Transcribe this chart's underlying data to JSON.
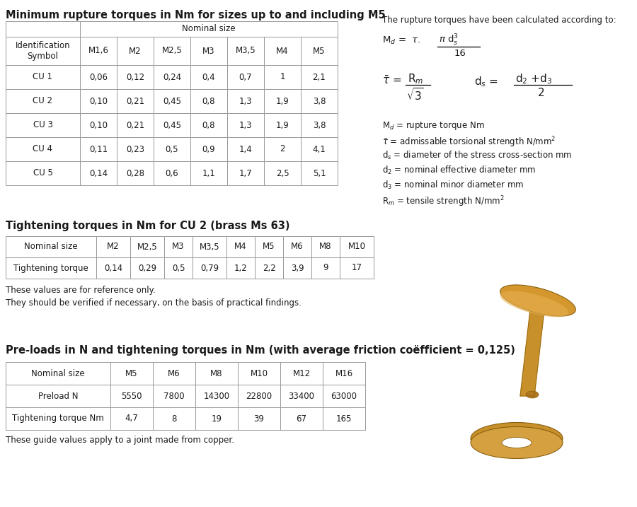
{
  "title1": "Minimum rupture torques in Nm for sizes up to and including M5",
  "table1_nom_header": "Nominal size",
  "table1_id_header": "Identification\nSymbol",
  "table1_size_headers": [
    "M1,6",
    "M2",
    "M2,5",
    "M3",
    "M3,5",
    "M4",
    "M5"
  ],
  "table1_rows": [
    [
      "CU 1",
      "0,06",
      "0,12",
      "0,24",
      "0,4",
      "0,7",
      "1",
      "2,1"
    ],
    [
      "CU 2",
      "0,10",
      "0,21",
      "0,45",
      "0,8",
      "1,3",
      "1,9",
      "3,8"
    ],
    [
      "CU 3",
      "0,10",
      "0,21",
      "0,45",
      "0,8",
      "1,3",
      "1,9",
      "3,8"
    ],
    [
      "CU 4",
      "0,11",
      "0,23",
      "0,5",
      "0,9",
      "1,4",
      "2",
      "4,1"
    ],
    [
      "CU 5",
      "0,14",
      "0,28",
      "0,6",
      "1,1",
      "1,7",
      "2,5",
      "5,1"
    ]
  ],
  "title2": "Tightening torques in Nm for CU 2 (brass Ms 63)",
  "table2_rows": [
    [
      "Nominal size",
      "M2",
      "M2,5",
      "M3",
      "M3,5",
      "M4",
      "M5",
      "M6",
      "M8",
      "M10"
    ],
    [
      "Tightening torque",
      "0,14",
      "0,29",
      "0,5",
      "0,79",
      "1,2",
      "2,2",
      "3,9",
      "9",
      "17"
    ]
  ],
  "note2_line1": "These values are for reference only.",
  "note2_line2": "They should be verified if necessary, on the basis of practical findings.",
  "title3": "Pre-loads in N and tightening torques in Nm (with average friction coëfficient = 0,125)",
  "table3_rows": [
    [
      "Nominal size",
      "M5",
      "M6",
      "M8",
      "M10",
      "M12",
      "M16"
    ],
    [
      "Preload N",
      "5550",
      "7800",
      "14300",
      "22800",
      "33400",
      "63000"
    ],
    [
      "Tightening torque Nm",
      "4,7",
      "8",
      "19",
      "39",
      "67",
      "165"
    ]
  ],
  "note3": "These guide values apply to a joint made from copper.",
  "bg_color": "#ffffff",
  "text_color": "#1a1a1a",
  "border_color": "#999999"
}
